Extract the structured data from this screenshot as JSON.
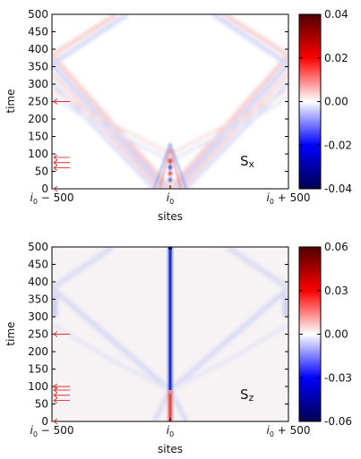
{
  "chart_data": [
    {
      "type": "heatmap",
      "panel_label_main": "S",
      "panel_label_sub": "x",
      "xlabel": "sites",
      "ylabel": "time",
      "xticks": [
        {
          "main": "i",
          "sub": "0",
          "rest": " − 500"
        },
        {
          "main": "i",
          "sub": "0",
          "rest": ""
        },
        {
          "main": "i",
          "sub": "0",
          "rest": " + 500"
        }
      ],
      "ylim": [
        0,
        500
      ],
      "yticks": [
        "0",
        "50",
        "100",
        "150",
        "200",
        "250",
        "300",
        "350",
        "400",
        "450",
        "500"
      ],
      "colorbar_range": [
        -0.04,
        0.04
      ],
      "colorbar_ticks": [
        "0.04",
        "0.02",
        "0.00",
        "-0.02",
        "-0.04"
      ],
      "colormap": [
        "#000050",
        "#0000ff",
        "#ffffff",
        "#ff0000",
        "#500000"
      ],
      "arrow_times": [
        250,
        90,
        75,
        60
      ]
    },
    {
      "type": "heatmap",
      "panel_label_main": "S",
      "panel_label_sub": "z",
      "xlabel": "sites",
      "ylabel": "time",
      "xticks": [
        {
          "main": "i",
          "sub": "0",
          "rest": " − 500"
        },
        {
          "main": "i",
          "sub": "0",
          "rest": ""
        },
        {
          "main": "i",
          "sub": "0",
          "rest": " + 500"
        }
      ],
      "ylim": [
        0,
        500
      ],
      "yticks": [
        "0",
        "50",
        "100",
        "150",
        "200",
        "250",
        "300",
        "350",
        "400",
        "450",
        "500"
      ],
      "colorbar_range": [
        -0.06,
        0.06
      ],
      "colorbar_ticks": [
        "0.06",
        "0.03",
        "0.00",
        "-0.03",
        "-0.06"
      ],
      "colormap": [
        "#000050",
        "#0000ff",
        "#ffffff",
        "#ff0000",
        "#500000"
      ],
      "arrow_times": [
        250,
        100,
        90,
        75,
        60
      ]
    }
  ]
}
